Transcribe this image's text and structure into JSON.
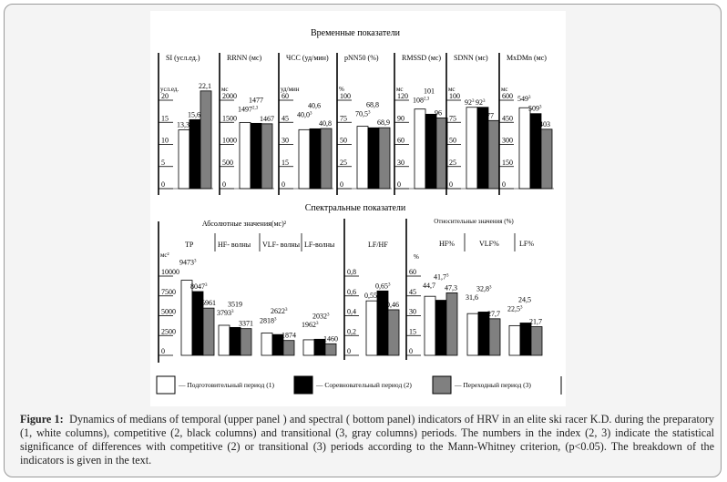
{
  "chart_data": {
    "type": "bar",
    "legend_placement": "bottom",
    "legend": [
      {
        "label": "— Подготовительный период (1)",
        "color": "#ffffff"
      },
      {
        "label": "— Соревновательный период (2)",
        "color": "#000000"
      },
      {
        "label": "— Переходный период (3)",
        "color": "#808080"
      }
    ],
    "top_panel": {
      "title": "Временные показатели",
      "charts": [
        {
          "title": "SI (усл.ед.)",
          "unit": "усл.ед.",
          "ticks": [
            0,
            5,
            10,
            15,
            20
          ],
          "tick_labels": [
            "0",
            "5",
            "10",
            "15",
            "20"
          ],
          "values": [
            13.3,
            15.6,
            22.1
          ],
          "labels": [
            "13,3",
            "15,6",
            "22,1"
          ],
          "sups": [
            "3",
            "3",
            ""
          ]
        },
        {
          "title": "RRNN (мс)",
          "unit": "мс",
          "ticks": [
            0,
            500,
            1000,
            1500,
            2000
          ],
          "tick_labels": [
            "0",
            "500",
            "1000",
            "1500",
            "2000"
          ],
          "values": [
            1497,
            1477,
            1467
          ],
          "labels": [
            "1497",
            "1477",
            "1467"
          ],
          "sups": [
            "2,3",
            "",
            ""
          ]
        },
        {
          "title": "ЧСС (уд/мин)",
          "unit": "уд/мин",
          "ticks": [
            0,
            15,
            30,
            45,
            60
          ],
          "tick_labels": [
            "0",
            "15",
            "30",
            "45",
            "60"
          ],
          "values": [
            40.0,
            40.6,
            40.8
          ],
          "labels": [
            "40,0",
            "40,6",
            "40,8"
          ],
          "sups": [
            "3",
            "",
            ""
          ]
        },
        {
          "title": "pNN50 (%)",
          "unit": "%",
          "ticks": [
            0,
            25,
            50,
            75,
            100
          ],
          "tick_labels": [
            "0",
            "25",
            "50",
            "75",
            "100"
          ],
          "values": [
            70.5,
            68.8,
            68.9
          ],
          "labels": [
            "70,5",
            "68,8",
            "68,9"
          ],
          "sups": [
            "3",
            "",
            ""
          ]
        },
        {
          "title": "RMSSD (мс)",
          "unit": "мс",
          "ticks": [
            0,
            30,
            60,
            90,
            120
          ],
          "tick_labels": [
            "0",
            "30",
            "60",
            "90",
            "120"
          ],
          "values": [
            108,
            101,
            96
          ],
          "labels": [
            "108",
            "101",
            "96"
          ],
          "sups": [
            "2,3",
            "",
            ""
          ]
        },
        {
          "title": "SDNN (мс)",
          "unit": "мс",
          "ticks": [
            0,
            25,
            50,
            75,
            100
          ],
          "tick_labels": [
            "0",
            "25",
            "50",
            "75",
            "100"
          ],
          "values": [
            92,
            92,
            77
          ],
          "labels": [
            "92",
            "92",
            "77"
          ],
          "sups": [
            "3",
            "3",
            ""
          ]
        },
        {
          "title": "MxDMn (мс)",
          "unit": "мс",
          "ticks": [
            0,
            150,
            300,
            450,
            600
          ],
          "tick_labels": [
            "0",
            "150",
            "300",
            "450",
            "600"
          ],
          "values": [
            549,
            509,
            403
          ],
          "labels": [
            "549",
            "509",
            "403"
          ],
          "sups": [
            "3",
            "3",
            ""
          ]
        }
      ]
    },
    "bottom_panel": {
      "title": "Спектральные показатели",
      "absolute": {
        "title": "Абсолютные значения(мс)²",
        "unit": "мс²",
        "ticks": [
          0,
          2500,
          5000,
          7500,
          10000
        ],
        "tick_labels": [
          "0",
          "2500",
          "5000",
          "7500",
          "10000"
        ],
        "groups": [
          {
            "name": "TP",
            "values": [
              9473,
              8047,
              5961
            ],
            "labels": [
              "9473",
              "8047",
              "5961"
            ],
            "sups": [
              "3",
              "3",
              ""
            ]
          },
          {
            "name": "HF- волны",
            "values": [
              3793,
              3519,
              3371
            ],
            "labels": [
              "3793",
              "3519",
              "3371"
            ],
            "sups": [
              "3",
              "",
              ""
            ]
          },
          {
            "name": "VLF- волны",
            "values": [
              2818,
              2622,
              1874
            ],
            "labels": [
              "2818",
              "2622",
              "1874"
            ],
            "sups": [
              "3",
              "3",
              ""
            ]
          },
          {
            "name": "LF-волны",
            "values": [
              1962,
              2032,
              1460
            ],
            "labels": [
              "1962",
              "2032",
              "1460"
            ],
            "sups": [
              "3",
              "3",
              ""
            ]
          }
        ]
      },
      "ratio": {
        "ticks": [
          0,
          0.2,
          0.4,
          0.6,
          0.8
        ],
        "tick_labels": [
          "0",
          "0,2",
          "0,4",
          "0,6",
          "0,8"
        ],
        "groups": [
          {
            "name": "LF/HF",
            "values": [
              0.55,
              0.65,
              0.46
            ],
            "labels": [
              "0,55",
              "0,65",
              "0,46"
            ],
            "sups": [
              "",
              "3",
              ""
            ]
          }
        ]
      },
      "relative": {
        "title": "Относительные значения (%)",
        "unit": "%",
        "ticks": [
          0,
          15,
          30,
          45,
          60
        ],
        "tick_labels": [
          "0",
          "15",
          "30",
          "45",
          "60"
        ],
        "groups": [
          {
            "name": "HF%",
            "values": [
              44.7,
              41.7,
              47.3
            ],
            "labels": [
              "44,7",
              "41,7",
              "47,3"
            ],
            "sups": [
              "",
              "3",
              ""
            ]
          },
          {
            "name": "VLF%",
            "values": [
              31.6,
              32.8,
              27.7
            ],
            "labels": [
              "31,6",
              "32,8",
              "27,7"
            ],
            "sups": [
              "",
              "3",
              ""
            ]
          },
          {
            "name": "LF%",
            "values": [
              22.5,
              24.5,
              21.7
            ],
            "labels": [
              "22,5",
              "24,5",
              "21,7"
            ],
            "sups": [
              "3",
              "",
              ""
            ]
          }
        ]
      }
    }
  },
  "caption": {
    "label": "Figure 1:",
    "text": "Dynamics of medians of temporal (upper panel ) and spectral ( bottom panel) indicators of HRV in an elite ski racer K.D. during the preparatory (1, white columns), competitive (2, black columns) and transitional (3, gray columns) periods. The numbers in the index (2, 3) indicate the statistical significance of differences with competitive (2) or transitional (3) periods according to the Mann-Whitney criterion, (p<0.05). The breakdown of the indicators is given in the text."
  }
}
